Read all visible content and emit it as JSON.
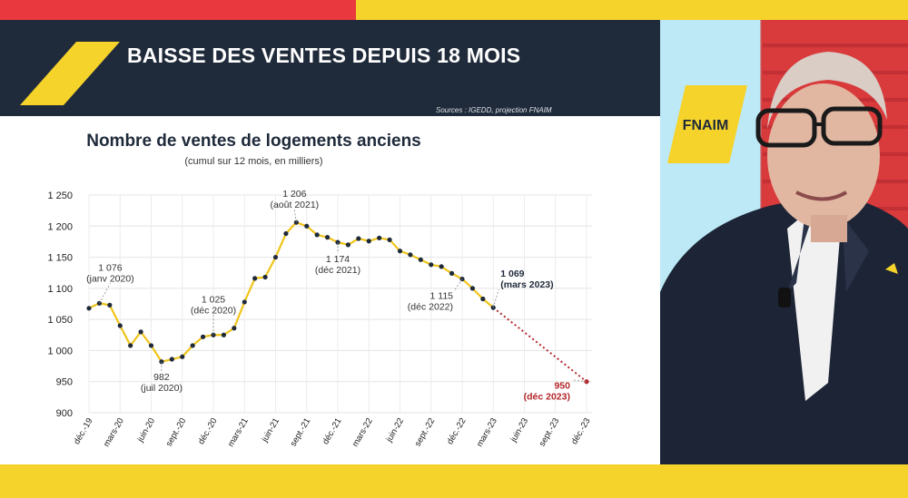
{
  "banner": {
    "title": "BAISSE DES VENTES DEPUIS 18 MOIS",
    "sources": "Sources : IGEDD, projection FNAIM"
  },
  "brand": {
    "name": "FNAIM",
    "accent": "#f5d32b",
    "navy": "#1f2a3a",
    "red": "#e9393e"
  },
  "chart_data": {
    "type": "line",
    "title": "Nombre de ventes de logements anciens",
    "subtitle": "(cumul sur 12 mois, en milliers)",
    "ylim": [
      900,
      1250
    ],
    "yticks": [
      900,
      950,
      1000,
      1050,
      1100,
      1150,
      1200,
      1250
    ],
    "ytick_labels": [
      "900",
      "950",
      "1 000",
      "1 050",
      "1 100",
      "1 150",
      "1 200",
      "1 250"
    ],
    "xticks": [
      "déc.-19",
      "mars-20",
      "juin-20",
      "sept.-20",
      "déc.-20",
      "mars-21",
      "juin-21",
      "sept.-21",
      "déc.-21",
      "mars-22",
      "juin-22",
      "sept.-22",
      "déc.-22",
      "mars-23",
      "juin-23",
      "sept.-23",
      "déc.-23"
    ],
    "grid": true,
    "series": [
      {
        "style": "solid",
        "color": "#f0c419",
        "values": [
          1068,
          1076,
          1073,
          1040,
          1008,
          1030,
          1008,
          982,
          986,
          990,
          1008,
          1022,
          1025,
          1025,
          1036,
          1078,
          1116,
          1118,
          1150,
          1188,
          1206,
          1200,
          1186,
          1182,
          1174,
          1170,
          1180,
          1176,
          1181,
          1178,
          1160,
          1154,
          1146,
          1138,
          1135,
          1124,
          1115,
          1100,
          1083,
          1069
        ]
      },
      {
        "style": "dotted",
        "color": "#b3262a",
        "start_index": 39,
        "values": [
          1069,
          950
        ],
        "end_index": 48
      }
    ],
    "annotations": [
      {
        "index": 1,
        "value": 1076,
        "line1": "1 076",
        "line2": "(janv 2020)",
        "color": "#333333"
      },
      {
        "index": 7,
        "value": 982,
        "line1": "982",
        "line2": "(juil 2020)",
        "color": "#333333"
      },
      {
        "index": 12,
        "value": 1025,
        "line1": "1 025",
        "line2": "(déc 2020)",
        "color": "#333333"
      },
      {
        "index": 20,
        "value": 1206,
        "line1": "1 206",
        "line2": "(août 2021)",
        "color": "#333333"
      },
      {
        "index": 24,
        "value": 1174,
        "line1": "1 174",
        "line2": "(déc 2021)",
        "color": "#333333"
      },
      {
        "index": 36,
        "value": 1115,
        "line1": "1 115",
        "line2": "(déc 2022)",
        "color": "#333333"
      },
      {
        "index": 39,
        "value": 1069,
        "line1": "1 069",
        "line2": "(mars 2023)",
        "color": "#1f2a3a",
        "bold": true
      },
      {
        "index": 48,
        "value": 950,
        "line1": "950",
        "line2": "(déc 2023)",
        "color": "#b3262a",
        "bold": true
      }
    ]
  }
}
